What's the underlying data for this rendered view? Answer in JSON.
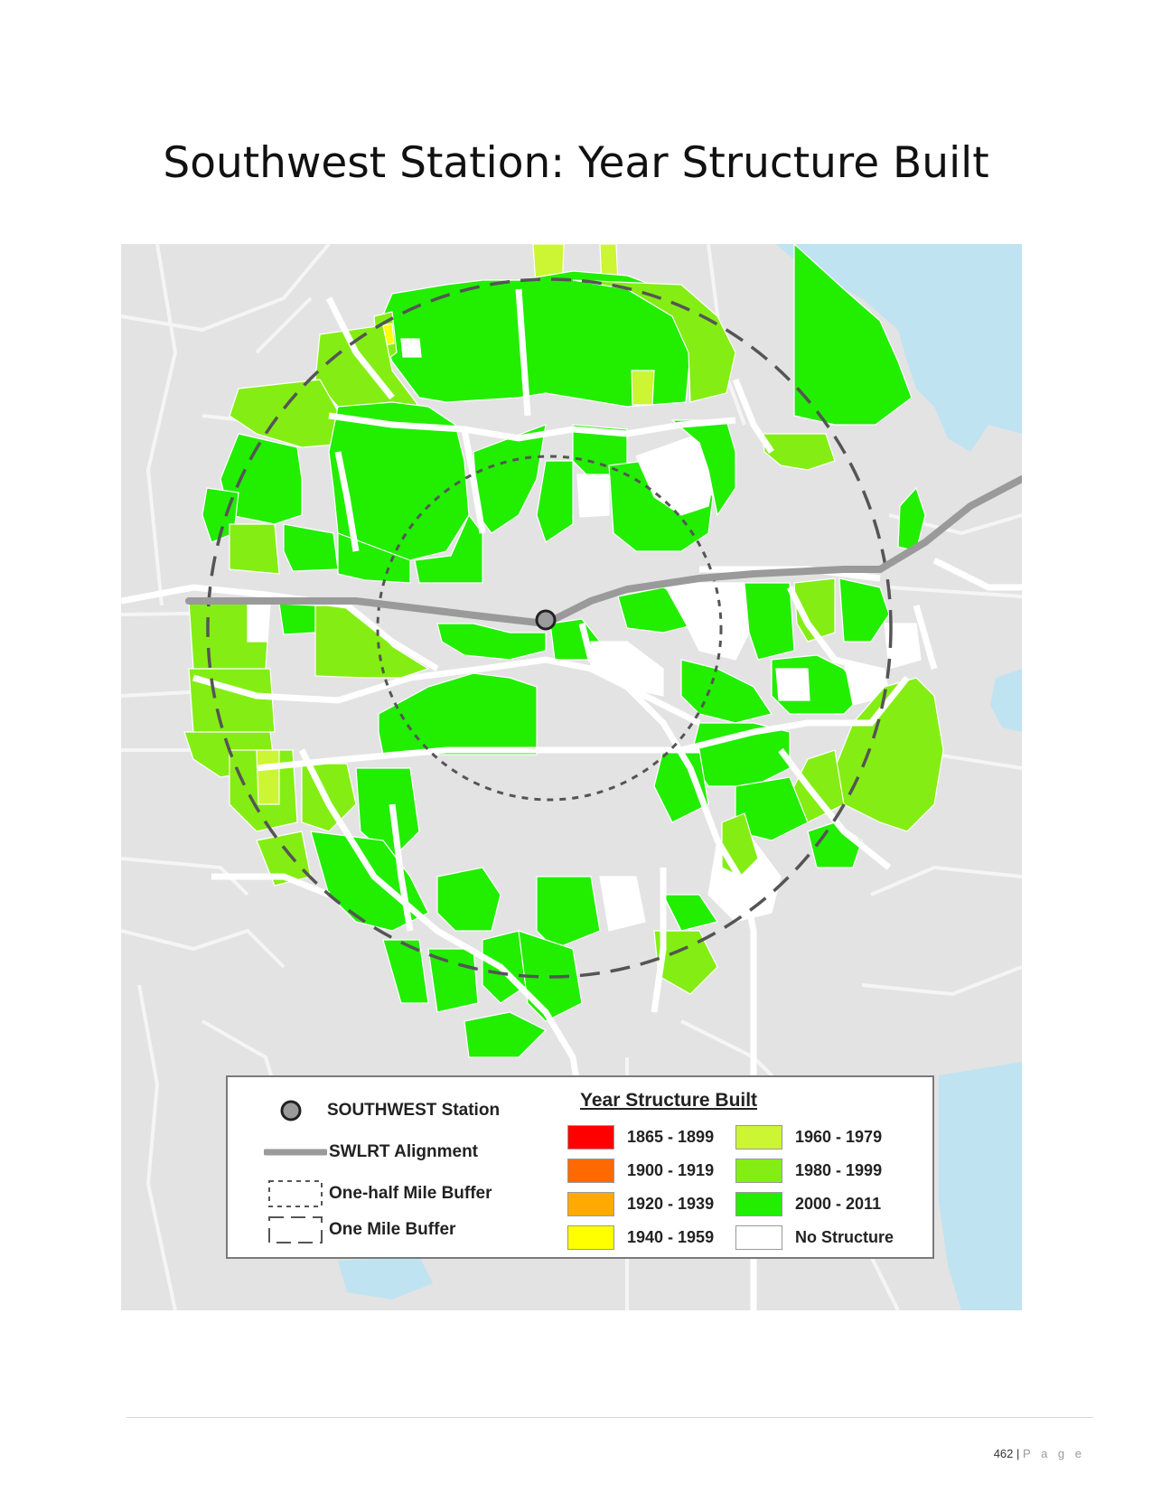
{
  "title": "Southwest Station: Year Structure Built",
  "map": {
    "background_color": "#e3e3e3",
    "water_color": "#bfe3f1",
    "road_color": "#ffffff",
    "alignment_color": "#9a9a9a",
    "station_fill": "#9b9b9b"
  },
  "legend": {
    "symbols": [
      {
        "icon": "station-circle-icon",
        "label": "SOUTHWEST Station"
      },
      {
        "icon": "rail-line-icon",
        "label": "SWLRT Alignment"
      },
      {
        "icon": "short-dash-box-icon",
        "label": "One-half Mile Buffer"
      },
      {
        "icon": "long-dash-box-icon",
        "label": "One Mile Buffer"
      }
    ],
    "heading": "Year Structure Built",
    "classes": [
      {
        "label": "1865 - 1899",
        "color": "#ff0000"
      },
      {
        "label": "1900 - 1919",
        "color": "#ff6a00"
      },
      {
        "label": "1920 - 1939",
        "color": "#ffaa00"
      },
      {
        "label": "1940 - 1959",
        "color": "#ffff00"
      },
      {
        "label": "1960 - 1979",
        "color": "#ccf533"
      },
      {
        "label": "1980 - 1999",
        "color": "#84ee14"
      },
      {
        "label": "2000 - 2011",
        "color": "#22ee00"
      },
      {
        "label": "No Structure",
        "color": "#ffffff"
      }
    ]
  },
  "footer": {
    "page_number": "462",
    "separator": "|",
    "page_word": "P a g e"
  }
}
